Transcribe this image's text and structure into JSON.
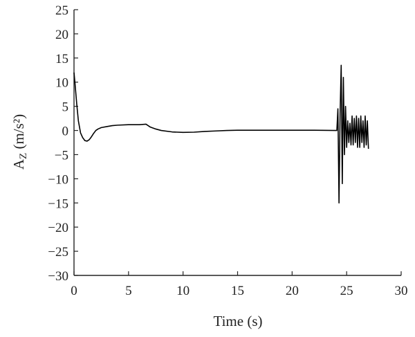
{
  "chart_data": {
    "type": "line",
    "title": "",
    "xlabel": "Time (s)",
    "ylabel_main": "A",
    "ylabel_sub": "Z",
    "ylabel_unit": " (m/s²)",
    "xlim": [
      0,
      30
    ],
    "ylim": [
      -30,
      25
    ],
    "x_ticks": [
      0,
      5,
      10,
      15,
      20,
      25,
      30
    ],
    "y_ticks": [
      25,
      20,
      15,
      10,
      5,
      0,
      -5,
      -10,
      -15,
      -20,
      -25,
      -30
    ],
    "x_tick_labels": [
      "0",
      "5",
      "10",
      "15",
      "20",
      "25",
      "30"
    ],
    "y_tick_labels": [
      "25",
      "20",
      "15",
      "10",
      "5",
      "0",
      "−5",
      "−10",
      "−15",
      "−20",
      "−25",
      "−30"
    ],
    "grid": false,
    "series": [
      {
        "x": [
          0,
          0.1,
          0.25,
          0.4,
          0.6,
          0.8,
          1.0,
          1.2,
          1.4,
          1.6,
          1.8,
          2.0,
          2.2,
          2.5,
          3.0,
          3.5,
          4.0,
          5.0,
          6.0,
          6.6,
          6.8,
          7.0,
          7.5,
          8.0,
          9.0,
          10.0,
          11.0,
          12.0,
          13.0,
          14.0,
          15.0,
          18.0,
          20.0,
          22.0,
          24.1,
          24.2,
          24.3,
          24.4,
          24.5,
          24.6,
          24.7,
          24.8,
          24.9,
          25.0,
          25.1,
          25.2,
          25.3,
          25.4,
          25.5,
          25.6,
          25.7,
          25.8,
          25.9,
          26.0,
          26.1,
          26.2,
          26.3,
          26.4,
          26.5,
          26.6,
          26.7,
          26.8,
          26.9,
          27.0
        ],
        "y": [
          12,
          9.5,
          5.5,
          2.0,
          -0.5,
          -1.5,
          -2.1,
          -2.2,
          -1.9,
          -1.3,
          -0.6,
          0.0,
          0.3,
          0.6,
          0.8,
          1.0,
          1.1,
          1.2,
          1.2,
          1.3,
          1.0,
          0.7,
          0.3,
          0.0,
          -0.3,
          -0.4,
          -0.35,
          -0.2,
          -0.1,
          0.0,
          0.05,
          0.05,
          0.05,
          0.05,
          0.0,
          4.5,
          -15,
          3.5,
          13.5,
          -11,
          11,
          -5,
          5,
          -3.5,
          2,
          -2.5,
          1.5,
          -3,
          3,
          -3,
          2.5,
          -2.5,
          3,
          -3.5,
          2.5,
          -3.5,
          3,
          -2.5,
          2,
          -3.5,
          3,
          -3,
          2,
          -3.8
        ]
      }
    ]
  }
}
